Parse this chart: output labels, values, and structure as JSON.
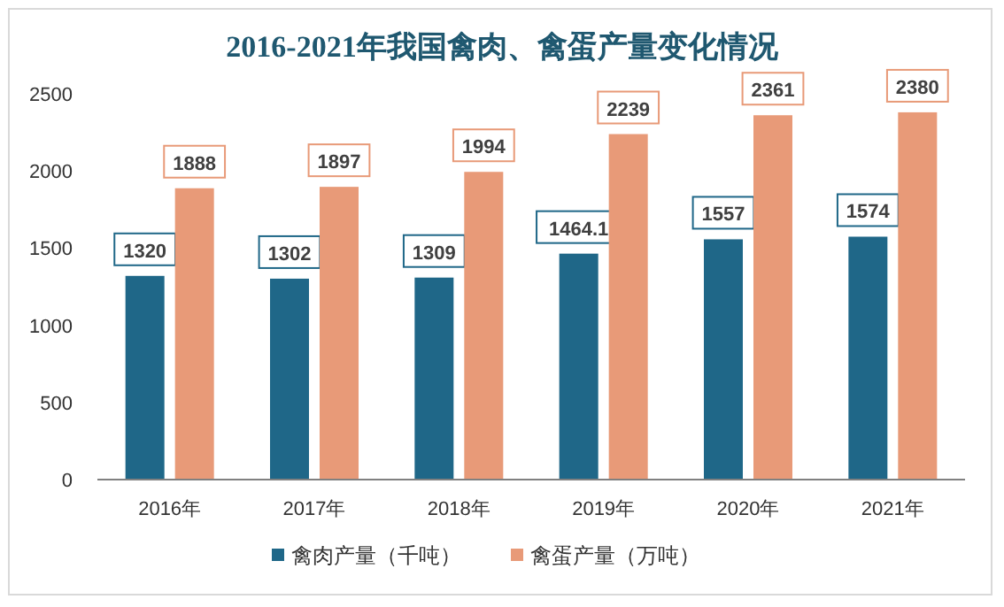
{
  "chart_data": {
    "type": "bar",
    "title": "2016-2021年我国禽肉、禽蛋产量变化情况",
    "categories": [
      "2016年",
      "2017年",
      "2018年",
      "2019年",
      "2020年",
      "2021年"
    ],
    "series": [
      {
        "name": "禽肉产量（千吨）",
        "color": "#1f6788",
        "values": [
          1320,
          1302,
          1309,
          1464.1,
          1557,
          1574
        ]
      },
      {
        "name": "禽蛋产量（万吨）",
        "color": "#e89a78",
        "values": [
          1888,
          1897,
          1994,
          2239,
          2361,
          2380
        ]
      }
    ],
    "ylim": [
      0,
      2500
    ],
    "yticks": [
      0,
      500,
      1000,
      1500,
      2000,
      2500
    ],
    "grid": false,
    "legend": "bottom",
    "data_labels": true
  }
}
